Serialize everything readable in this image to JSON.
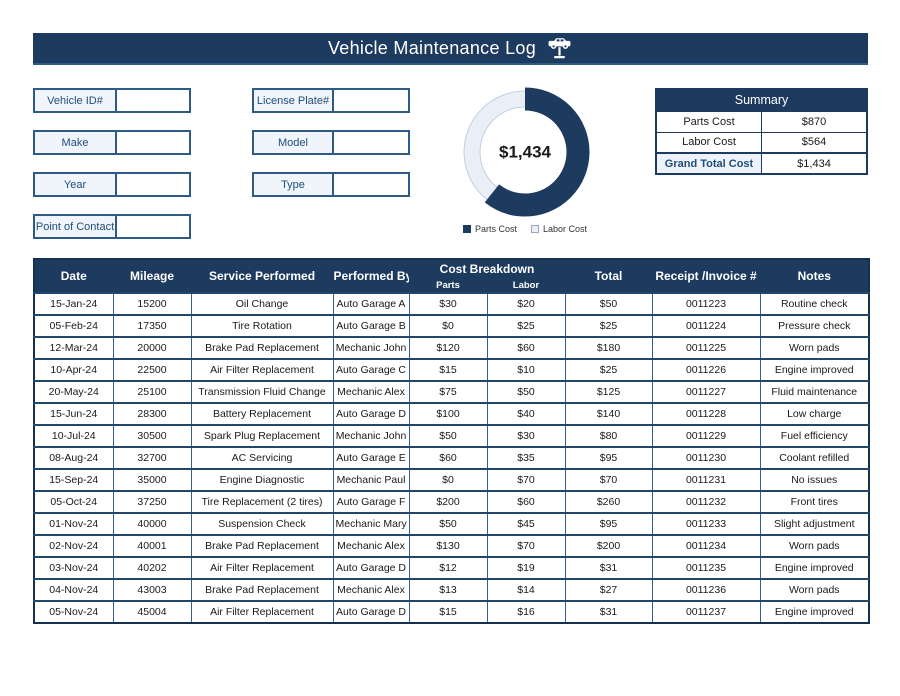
{
  "page": {
    "title": "Vehicle Maintenance Log"
  },
  "form": {
    "fields": {
      "vehicle_id": {
        "label": "Vehicle ID#",
        "value": ""
      },
      "license_plate": {
        "label": "License Plate#",
        "value": ""
      },
      "make": {
        "label": "Make",
        "value": ""
      },
      "model": {
        "label": "Model",
        "value": ""
      },
      "year": {
        "label": "Year",
        "value": ""
      },
      "type": {
        "label": "Type",
        "value": ""
      },
      "point_of_contact": {
        "label": "Point of Contact",
        "value": ""
      }
    }
  },
  "chart_data": {
    "type": "pie",
    "subtype": "doughnut",
    "series": [
      {
        "name": "Parts Cost",
        "value": 870,
        "color": "#1d3a5f"
      },
      {
        "name": "Labor Cost",
        "value": 564,
        "color": "#e9eef7"
      }
    ],
    "center_label": "$1,434",
    "legend_position": "bottom",
    "start_angle_deg": 0,
    "direction": "clockwise"
  },
  "summary": {
    "title": "Summary",
    "rows": [
      {
        "label": "Parts Cost",
        "value": "$870"
      },
      {
        "label": "Labor Cost",
        "value": "$564"
      }
    ],
    "grand_total": {
      "label": "Grand Total Cost",
      "value": "$1,434"
    }
  },
  "log_table": {
    "headers": {
      "date": "Date",
      "mileage": "Mileage",
      "service": "Service Performed",
      "performed_by": "Performed By",
      "cost_breakdown": "Cost Breakdown",
      "parts": "Parts",
      "labor": "Labor",
      "total": "Total",
      "receipt": "Receipt /Invoice #",
      "notes": "Notes"
    },
    "rows": [
      {
        "date": "15-Jan-24",
        "mileage": "15200",
        "service": "Oil Change",
        "performed_by": "Auto Garage A",
        "parts": "$30",
        "labor": "$20",
        "total": "$50",
        "receipt": "0011223",
        "notes": "Routine check"
      },
      {
        "date": "05-Feb-24",
        "mileage": "17350",
        "service": "Tire Rotation",
        "performed_by": "Auto Garage B",
        "parts": "$0",
        "labor": "$25",
        "total": "$25",
        "receipt": "0011224",
        "notes": "Pressure check"
      },
      {
        "date": "12-Mar-24",
        "mileage": "20000",
        "service": "Brake Pad Replacement",
        "performed_by": "Mechanic John",
        "parts": "$120",
        "labor": "$60",
        "total": "$180",
        "receipt": "0011225",
        "notes": "Worn pads"
      },
      {
        "date": "10-Apr-24",
        "mileage": "22500",
        "service": "Air Filter Replacement",
        "performed_by": "Auto Garage C",
        "parts": "$15",
        "labor": "$10",
        "total": "$25",
        "receipt": "0011226",
        "notes": "Engine improved"
      },
      {
        "date": "20-May-24",
        "mileage": "25100",
        "service": "Transmission Fluid Change",
        "performed_by": "Mechanic Alex",
        "parts": "$75",
        "labor": "$50",
        "total": "$125",
        "receipt": "0011227",
        "notes": "Fluid maintenance"
      },
      {
        "date": "15-Jun-24",
        "mileage": "28300",
        "service": "Battery Replacement",
        "performed_by": "Auto Garage D",
        "parts": "$100",
        "labor": "$40",
        "total": "$140",
        "receipt": "0011228",
        "notes": "Low charge"
      },
      {
        "date": "10-Jul-24",
        "mileage": "30500",
        "service": "Spark Plug Replacement",
        "performed_by": "Mechanic John",
        "parts": "$50",
        "labor": "$30",
        "total": "$80",
        "receipt": "0011229",
        "notes": "Fuel efficiency"
      },
      {
        "date": "08-Aug-24",
        "mileage": "32700",
        "service": "AC Servicing",
        "performed_by": "Auto Garage E",
        "parts": "$60",
        "labor": "$35",
        "total": "$95",
        "receipt": "0011230",
        "notes": "Coolant refilled"
      },
      {
        "date": "15-Sep-24",
        "mileage": "35000",
        "service": "Engine Diagnostic",
        "performed_by": "Mechanic Paul",
        "parts": "$0",
        "labor": "$70",
        "total": "$70",
        "receipt": "0011231",
        "notes": "No issues"
      },
      {
        "date": "05-Oct-24",
        "mileage": "37250",
        "service": "Tire Replacement (2 tires)",
        "performed_by": "Auto Garage F",
        "parts": "$200",
        "labor": "$60",
        "total": "$260",
        "receipt": "0011232",
        "notes": "Front tires"
      },
      {
        "date": "01-Nov-24",
        "mileage": "40000",
        "service": "Suspension Check",
        "performed_by": "Mechanic Mary",
        "parts": "$50",
        "labor": "$45",
        "total": "$95",
        "receipt": "0011233",
        "notes": "Slight adjustment"
      },
      {
        "date": "02-Nov-24",
        "mileage": "40001",
        "service": "Brake Pad Replacement",
        "performed_by": "Mechanic Alex",
        "parts": "$130",
        "labor": "$70",
        "total": "$200",
        "receipt": "0011234",
        "notes": "Worn pads"
      },
      {
        "date": "03-Nov-24",
        "mileage": "40202",
        "service": "Air Filter Replacement",
        "performed_by": "Auto Garage D",
        "parts": "$12",
        "labor": "$19",
        "total": "$31",
        "receipt": "0011235",
        "notes": "Engine improved"
      },
      {
        "date": "04-Nov-24",
        "mileage": "43003",
        "service": "Brake Pad Replacement",
        "performed_by": "Mechanic Alex",
        "parts": "$13",
        "labor": "$14",
        "total": "$27",
        "receipt": "0011236",
        "notes": "Worn pads"
      },
      {
        "date": "05-Nov-24",
        "mileage": "45004",
        "service": "Air Filter Replacement",
        "performed_by": "Auto Garage D",
        "parts": "$15",
        "labor": "$16",
        "total": "$31",
        "receipt": "0011237",
        "notes": "Engine improved"
      }
    ]
  },
  "colors": {
    "navy": "#1d3a5f",
    "border_blue": "#2f5a85",
    "label_fill": "#f0f4fb",
    "chart_light": "#e9eef7"
  }
}
